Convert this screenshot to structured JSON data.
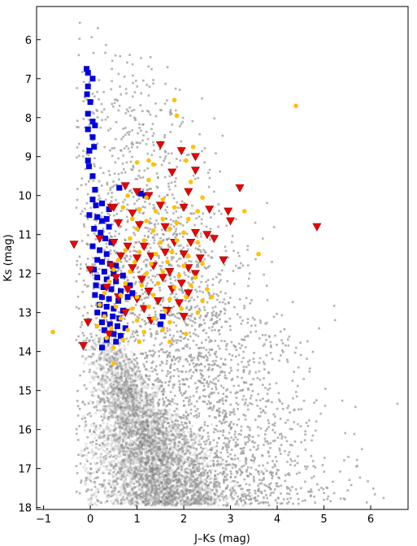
{
  "chart_data": {
    "type": "scatter",
    "title": "",
    "xlabel": "J–Ks (mag)",
    "ylabel": "Ks (mag)",
    "xlim": [
      -1.15,
      6.8
    ],
    "ylim": [
      18.05,
      5.15
    ],
    "y_inverted": true,
    "xticks": [
      -1,
      0,
      1,
      2,
      3,
      4,
      5,
      6
    ],
    "yticks": [
      6,
      7,
      8,
      9,
      10,
      11,
      12,
      13,
      14,
      15,
      16,
      17,
      18
    ],
    "grid": false,
    "legend": "none",
    "background_density": {
      "description_color": "#999999",
      "ridge_points": [
        {
          "x": 0.45,
          "y": 14.2
        },
        {
          "x": 0.75,
          "y": 15.3
        },
        {
          "x": 1.05,
          "y": 16.3
        },
        {
          "x": 1.35,
          "y": 17.1
        },
        {
          "x": 1.6,
          "y": 17.6
        }
      ],
      "color": "#9a9a9a"
    },
    "series": [
      {
        "color": "#0000dd",
        "marker": "square",
        "points": [
          {
            "x": -0.08,
            "y": 6.75
          },
          {
            "x": -0.05,
            "y": 6.85
          },
          {
            "x": 0.05,
            "y": 7.0
          },
          {
            "x": -0.05,
            "y": 7.2
          },
          {
            "x": -0.07,
            "y": 7.4
          },
          {
            "x": 0.0,
            "y": 7.6
          },
          {
            "x": -0.05,
            "y": 7.9
          },
          {
            "x": 0.05,
            "y": 8.1
          },
          {
            "x": 0.1,
            "y": 8.2
          },
          {
            "x": -0.05,
            "y": 8.3
          },
          {
            "x": 0.05,
            "y": 8.5
          },
          {
            "x": 0.08,
            "y": 8.75
          },
          {
            "x": -0.02,
            "y": 8.85
          },
          {
            "x": -0.05,
            "y": 9.1
          },
          {
            "x": -0.03,
            "y": 9.25
          },
          {
            "x": 0.05,
            "y": 9.5
          },
          {
            "x": 0.1,
            "y": 9.85
          },
          {
            "x": 0.62,
            "y": 9.8
          },
          {
            "x": 1.08,
            "y": 9.95
          },
          {
            "x": 1.18,
            "y": 10.0
          },
          {
            "x": 0.05,
            "y": 10.1
          },
          {
            "x": 0.12,
            "y": 10.25
          },
          {
            "x": 0.25,
            "y": 10.2
          },
          {
            "x": 0.4,
            "y": 10.35
          },
          {
            "x": -0.02,
            "y": 10.5
          },
          {
            "x": 0.15,
            "y": 10.55
          },
          {
            "x": 0.25,
            "y": 10.65
          },
          {
            "x": 0.35,
            "y": 10.6
          },
          {
            "x": 0.4,
            "y": 10.8
          },
          {
            "x": 0.08,
            "y": 10.85
          },
          {
            "x": 0.22,
            "y": 10.95
          },
          {
            "x": 0.32,
            "y": 11.1
          },
          {
            "x": 0.45,
            "y": 11.2
          },
          {
            "x": 0.05,
            "y": 11.3
          },
          {
            "x": 0.2,
            "y": 11.4
          },
          {
            "x": 0.35,
            "y": 11.5
          },
          {
            "x": 0.15,
            "y": 11.65
          },
          {
            "x": 0.25,
            "y": 11.7
          },
          {
            "x": 0.42,
            "y": 11.75
          },
          {
            "x": 0.55,
            "y": 11.8
          },
          {
            "x": 0.08,
            "y": 11.9
          },
          {
            "x": 0.3,
            "y": 11.95
          },
          {
            "x": 0.5,
            "y": 12.0
          },
          {
            "x": 0.7,
            "y": 12.05
          },
          {
            "x": 0.15,
            "y": 12.1
          },
          {
            "x": 0.35,
            "y": 12.15
          },
          {
            "x": 0.55,
            "y": 12.2
          },
          {
            "x": 0.12,
            "y": 12.3
          },
          {
            "x": 0.28,
            "y": 12.35
          },
          {
            "x": 0.45,
            "y": 12.4
          },
          {
            "x": 0.65,
            "y": 12.45
          },
          {
            "x": 0.85,
            "y": 12.3
          },
          {
            "x": 0.1,
            "y": 12.55
          },
          {
            "x": 0.25,
            "y": 12.6
          },
          {
            "x": 0.4,
            "y": 12.65
          },
          {
            "x": 0.6,
            "y": 12.7
          },
          {
            "x": 0.8,
            "y": 12.6
          },
          {
            "x": 0.2,
            "y": 12.8
          },
          {
            "x": 0.35,
            "y": 12.85
          },
          {
            "x": 0.5,
            "y": 12.9
          },
          {
            "x": 0.7,
            "y": 12.95
          },
          {
            "x": 0.15,
            "y": 13.0
          },
          {
            "x": 0.3,
            "y": 13.05
          },
          {
            "x": 0.48,
            "y": 13.1
          },
          {
            "x": 0.62,
            "y": 13.15
          },
          {
            "x": 0.25,
            "y": 13.25
          },
          {
            "x": 0.42,
            "y": 13.3
          },
          {
            "x": 0.58,
            "y": 13.35
          },
          {
            "x": 0.75,
            "y": 13.4
          },
          {
            "x": 0.3,
            "y": 13.45
          },
          {
            "x": 0.5,
            "y": 13.55
          },
          {
            "x": 0.65,
            "y": 13.6
          },
          {
            "x": 0.35,
            "y": 13.7
          },
          {
            "x": 0.55,
            "y": 13.75
          },
          {
            "x": 0.25,
            "y": 13.9
          },
          {
            "x": 1.55,
            "y": 13.1
          },
          {
            "x": 1.5,
            "y": 13.3
          },
          {
            "x": 0.9,
            "y": 12.5
          }
        ]
      },
      {
        "color": "#ee0000",
        "marker": "triangle-down",
        "points": [
          {
            "x": 1.5,
            "y": 8.7
          },
          {
            "x": 1.95,
            "y": 8.85
          },
          {
            "x": 2.25,
            "y": 9.0
          },
          {
            "x": 1.75,
            "y": 9.4
          },
          {
            "x": 2.25,
            "y": 9.35
          },
          {
            "x": 2.1,
            "y": 9.9
          },
          {
            "x": 3.2,
            "y": 9.8
          },
          {
            "x": 1.0,
            "y": 9.9
          },
          {
            "x": 1.25,
            "y": 10.0
          },
          {
            "x": 0.75,
            "y": 9.75
          },
          {
            "x": 0.45,
            "y": 10.3
          },
          {
            "x": 0.5,
            "y": 10.3
          },
          {
            "x": 0.9,
            "y": 10.45
          },
          {
            "x": 1.5,
            "y": 10.25
          },
          {
            "x": 2.0,
            "y": 10.3
          },
          {
            "x": 2.55,
            "y": 10.35
          },
          {
            "x": 2.95,
            "y": 10.4
          },
          {
            "x": 3.0,
            "y": 10.65
          },
          {
            "x": 0.6,
            "y": 10.7
          },
          {
            "x": 1.05,
            "y": 10.75
          },
          {
            "x": 1.6,
            "y": 10.8
          },
          {
            "x": 2.25,
            "y": 10.95
          },
          {
            "x": 2.5,
            "y": 11.0
          },
          {
            "x": 4.85,
            "y": 10.8
          },
          {
            "x": -0.35,
            "y": 11.25
          },
          {
            "x": 0.2,
            "y": 11.1
          },
          {
            "x": 0.5,
            "y": 11.2
          },
          {
            "x": 0.8,
            "y": 11.3
          },
          {
            "x": 1.15,
            "y": 11.3
          },
          {
            "x": 1.8,
            "y": 11.2
          },
          {
            "x": 2.15,
            "y": 11.2
          },
          {
            "x": 2.65,
            "y": 11.1
          },
          {
            "x": 1.6,
            "y": 11.45
          },
          {
            "x": 0.65,
            "y": 11.55
          },
          {
            "x": 1.0,
            "y": 11.6
          },
          {
            "x": 1.3,
            "y": 11.55
          },
          {
            "x": 2.0,
            "y": 11.5
          },
          {
            "x": 2.35,
            "y": 11.6
          },
          {
            "x": 2.85,
            "y": 11.65
          },
          {
            "x": 0.0,
            "y": 11.9
          },
          {
            "x": 0.45,
            "y": 11.8
          },
          {
            "x": 0.9,
            "y": 11.85
          },
          {
            "x": 1.35,
            "y": 11.8
          },
          {
            "x": 1.7,
            "y": 11.95
          },
          {
            "x": 2.1,
            "y": 11.85
          },
          {
            "x": 2.25,
            "y": 12.0
          },
          {
            "x": 0.55,
            "y": 12.1
          },
          {
            "x": 1.1,
            "y": 12.15
          },
          {
            "x": 1.55,
            "y": 12.1
          },
          {
            "x": 1.95,
            "y": 12.25
          },
          {
            "x": 0.35,
            "y": 12.35
          },
          {
            "x": 0.8,
            "y": 12.4
          },
          {
            "x": 1.25,
            "y": 12.45
          },
          {
            "x": 1.75,
            "y": 12.4
          },
          {
            "x": 2.1,
            "y": 12.5
          },
          {
            "x": 0.6,
            "y": 12.6
          },
          {
            "x": 1.0,
            "y": 12.65
          },
          {
            "x": 1.45,
            "y": 12.7
          },
          {
            "x": 1.9,
            "y": 12.75
          },
          {
            "x": 1.15,
            "y": 12.9
          },
          {
            "x": 1.65,
            "y": 12.95
          },
          {
            "x": 0.75,
            "y": 13.0
          },
          {
            "x": -0.05,
            "y": 13.25
          },
          {
            "x": -0.15,
            "y": 13.85
          },
          {
            "x": 0.4,
            "y": 13.55
          },
          {
            "x": 1.3,
            "y": 13.2
          },
          {
            "x": 2.0,
            "y": 13.1
          }
        ]
      },
      {
        "color": "#ffc000",
        "marker": "circle",
        "points": [
          {
            "x": 1.8,
            "y": 7.55
          },
          {
            "x": 4.4,
            "y": 7.7
          },
          {
            "x": 1.85,
            "y": 7.95
          },
          {
            "x": 2.2,
            "y": 8.75
          },
          {
            "x": 1.25,
            "y": 9.1
          },
          {
            "x": 1.35,
            "y": 9.2
          },
          {
            "x": 1.0,
            "y": 9.15
          },
          {
            "x": 2.05,
            "y": 9.1
          },
          {
            "x": 1.25,
            "y": 9.6
          },
          {
            "x": 2.15,
            "y": 9.65
          },
          {
            "x": 0.8,
            "y": 10.0
          },
          {
            "x": 1.2,
            "y": 10.05
          },
          {
            "x": 1.55,
            "y": 10.1
          },
          {
            "x": 2.4,
            "y": 10.05
          },
          {
            "x": 0.7,
            "y": 10.3
          },
          {
            "x": 1.05,
            "y": 10.35
          },
          {
            "x": 1.4,
            "y": 10.4
          },
          {
            "x": 1.8,
            "y": 10.3
          },
          {
            "x": 2.3,
            "y": 10.4
          },
          {
            "x": 3.3,
            "y": 10.4
          },
          {
            "x": 0.9,
            "y": 10.6
          },
          {
            "x": 1.2,
            "y": 10.65
          },
          {
            "x": 1.55,
            "y": 10.6
          },
          {
            "x": 1.85,
            "y": 10.7
          },
          {
            "x": 2.1,
            "y": 10.6
          },
          {
            "x": 1.0,
            "y": 10.85
          },
          {
            "x": 1.35,
            "y": 10.9
          },
          {
            "x": 1.7,
            "y": 10.85
          },
          {
            "x": 2.0,
            "y": 10.95
          },
          {
            "x": 0.85,
            "y": 11.1
          },
          {
            "x": 1.15,
            "y": 11.15
          },
          {
            "x": 1.5,
            "y": 11.2
          },
          {
            "x": 1.85,
            "y": 11.15
          },
          {
            "x": 2.3,
            "y": 11.2
          },
          {
            "x": 3.6,
            "y": 11.5
          },
          {
            "x": 0.75,
            "y": 11.4
          },
          {
            "x": 1.05,
            "y": 11.45
          },
          {
            "x": 1.4,
            "y": 11.5
          },
          {
            "x": 1.75,
            "y": 11.45
          },
          {
            "x": 2.1,
            "y": 11.55
          },
          {
            "x": 0.6,
            "y": 11.65
          },
          {
            "x": 0.95,
            "y": 11.7
          },
          {
            "x": 1.3,
            "y": 11.75
          },
          {
            "x": 1.65,
            "y": 11.7
          },
          {
            "x": 2.0,
            "y": 11.8
          },
          {
            "x": 2.4,
            "y": 11.75
          },
          {
            "x": 0.5,
            "y": 11.9
          },
          {
            "x": 0.85,
            "y": 11.95
          },
          {
            "x": 1.2,
            "y": 12.0
          },
          {
            "x": 1.55,
            "y": 11.95
          },
          {
            "x": 1.9,
            "y": 12.05
          },
          {
            "x": 2.25,
            "y": 12.1
          },
          {
            "x": 0.4,
            "y": 12.2
          },
          {
            "x": 0.75,
            "y": 12.25
          },
          {
            "x": 1.1,
            "y": 12.3
          },
          {
            "x": 1.45,
            "y": 12.25
          },
          {
            "x": 1.8,
            "y": 12.35
          },
          {
            "x": 2.15,
            "y": 12.3
          },
          {
            "x": 2.5,
            "y": 12.4
          },
          {
            "x": 0.3,
            "y": 12.5
          },
          {
            "x": 0.65,
            "y": 12.55
          },
          {
            "x": 1.0,
            "y": 12.6
          },
          {
            "x": 1.35,
            "y": 12.55
          },
          {
            "x": 1.7,
            "y": 12.65
          },
          {
            "x": 2.05,
            "y": 12.6
          },
          {
            "x": 2.4,
            "y": 12.7
          },
          {
            "x": 0.2,
            "y": 12.8
          },
          {
            "x": 0.55,
            "y": 12.85
          },
          {
            "x": 0.9,
            "y": 12.9
          },
          {
            "x": 1.25,
            "y": 12.85
          },
          {
            "x": 1.6,
            "y": 12.95
          },
          {
            "x": 1.95,
            "y": 12.9
          },
          {
            "x": 2.3,
            "y": 13.0
          },
          {
            "x": 0.3,
            "y": 13.1
          },
          {
            "x": 0.65,
            "y": 13.15
          },
          {
            "x": 1.0,
            "y": 13.2
          },
          {
            "x": 1.35,
            "y": 13.15
          },
          {
            "x": 1.7,
            "y": 13.25
          },
          {
            "x": 0.15,
            "y": 13.35
          },
          {
            "x": 0.45,
            "y": 13.4
          },
          {
            "x": 0.8,
            "y": 13.45
          },
          {
            "x": 1.15,
            "y": 13.5
          },
          {
            "x": 1.55,
            "y": 13.45
          },
          {
            "x": 2.05,
            "y": 13.55
          },
          {
            "x": 0.35,
            "y": 13.65
          },
          {
            "x": 0.7,
            "y": 13.7
          },
          {
            "x": 1.05,
            "y": 13.75
          },
          {
            "x": 1.7,
            "y": 13.75
          },
          {
            "x": 0.5,
            "y": 13.9
          },
          {
            "x": -0.8,
            "y": 13.5
          },
          {
            "x": 0.5,
            "y": 14.3
          },
          {
            "x": 2.6,
            "y": 12.6
          }
        ]
      }
    ]
  }
}
